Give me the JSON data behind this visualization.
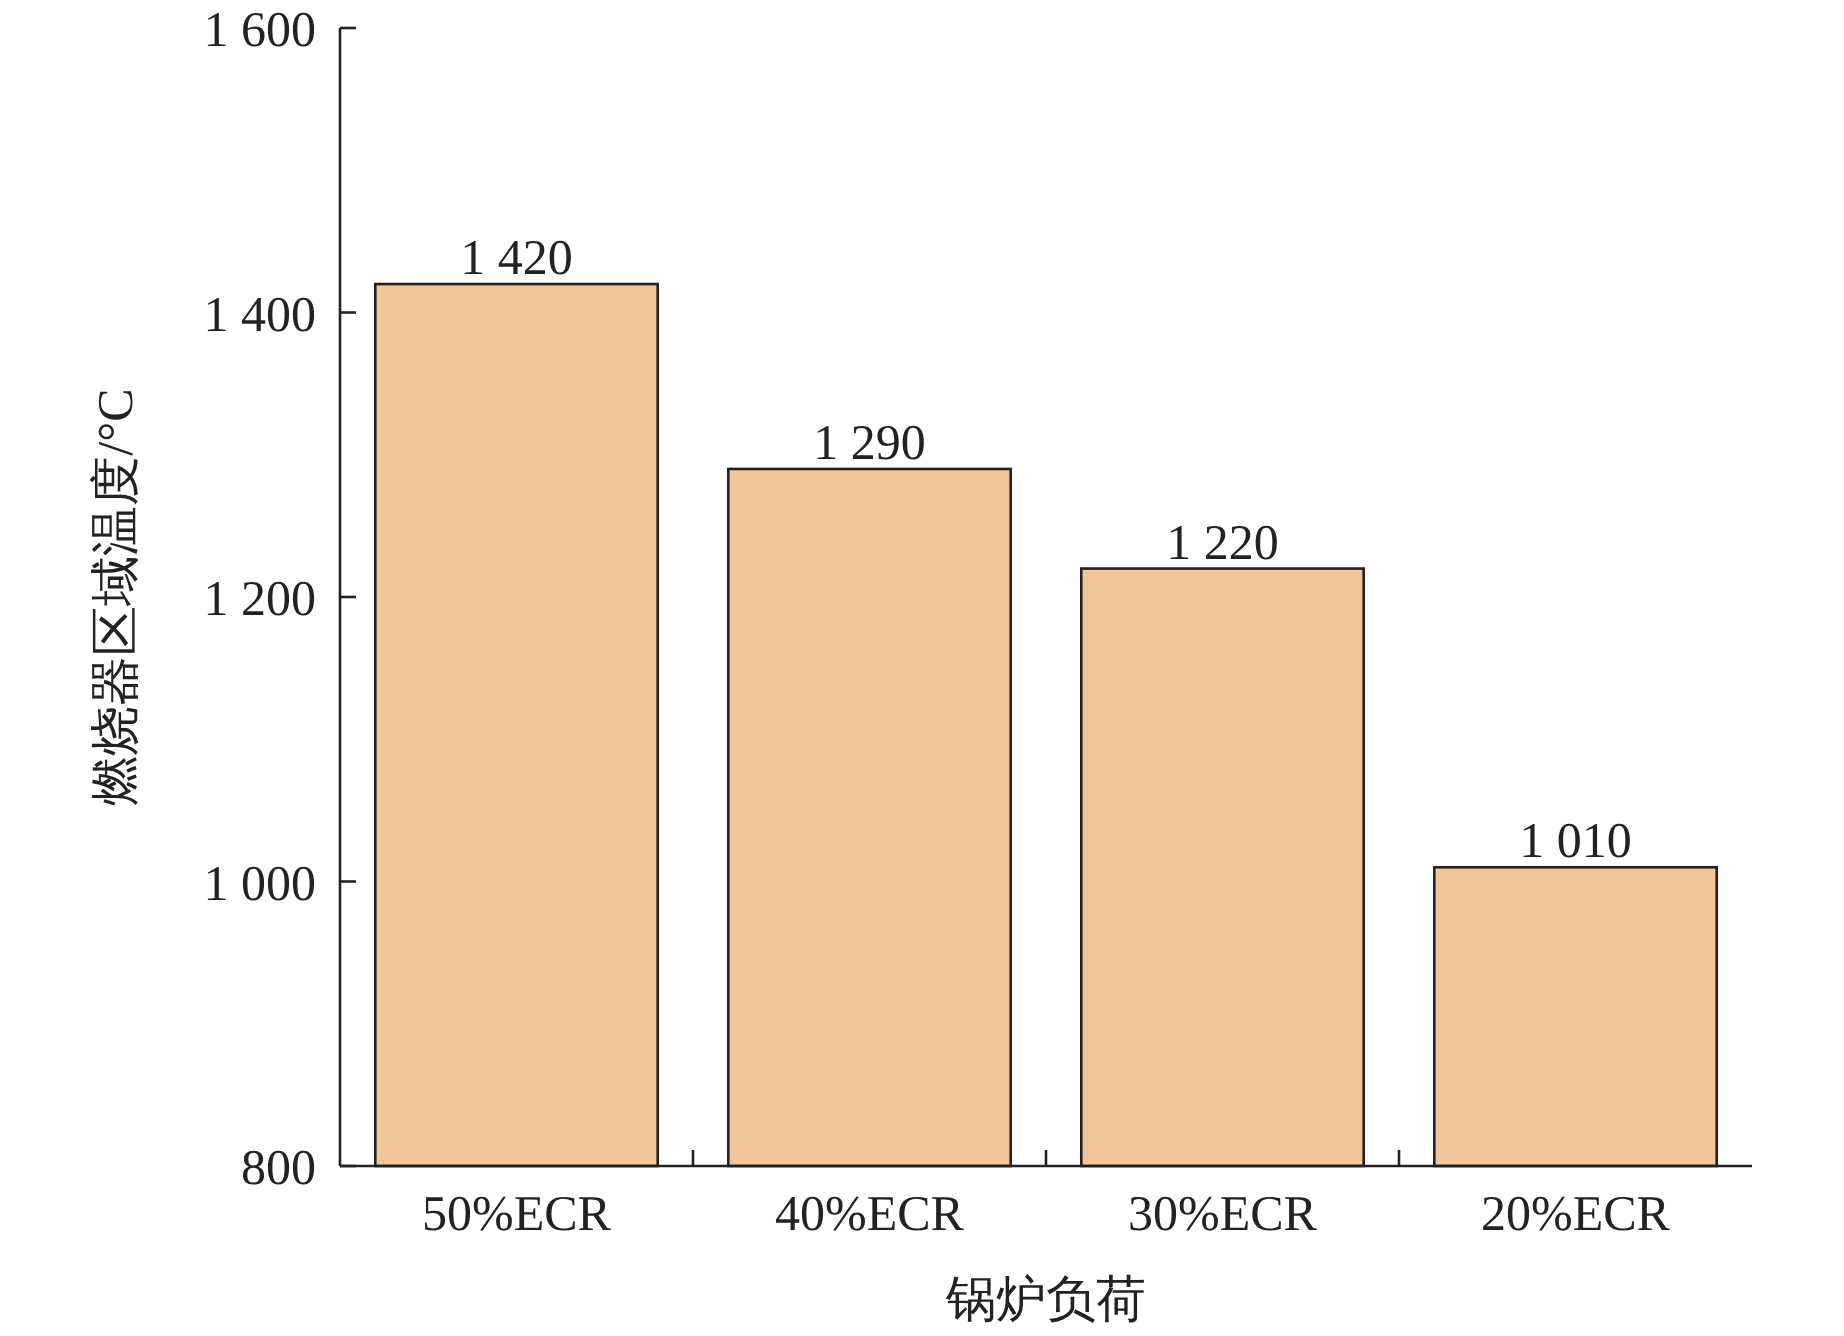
{
  "chart_data": {
    "type": "bar",
    "xlabel": "锅炉负荷",
    "ylabel": "燃烧器区域温度/°C",
    "categories": [
      "50%ECR",
      "40%ECR",
      "30%ECR",
      "20%ECR"
    ],
    "values": [
      1420,
      1290,
      1220,
      1010
    ],
    "value_labels": [
      "1 420",
      "1 290",
      "1 220",
      "1 010"
    ],
    "color": "#f2c59b",
    "ylim": [
      800,
      1600
    ],
    "yticks": [
      {
        "value": 800,
        "label": "800"
      },
      {
        "value": 1000,
        "label": "1 000"
      },
      {
        "value": 1200,
        "label": "1 200"
      },
      {
        "value": 1400,
        "label": "1 400"
      },
      {
        "value": 1600,
        "label": "1 600"
      }
    ]
  }
}
